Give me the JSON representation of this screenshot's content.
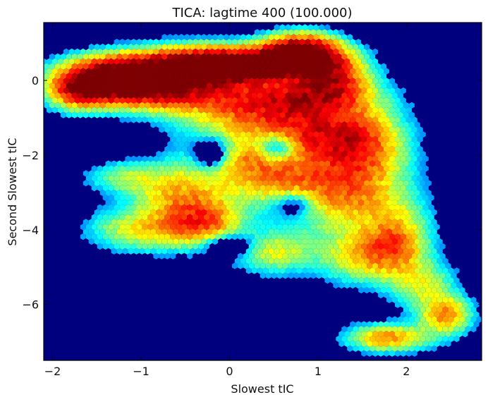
{
  "chart_data": {
    "type": "heatmap",
    "subtype": "hexbin",
    "title": "TICA: lagtime 400 (100.000)",
    "xlabel": "Slowest tIC",
    "ylabel": "Second Slowest tIC",
    "xlim": [
      -2.1,
      2.85
    ],
    "ylim": [
      -7.5,
      1.55
    ],
    "xticks": [
      -2,
      -1,
      0,
      1,
      2
    ],
    "xtick_labels": [
      "−2",
      "−1",
      "0",
      "1",
      "2"
    ],
    "yticks": [
      0,
      -2,
      -4,
      -6
    ],
    "ytick_labels": [
      "0",
      "−2",
      "−4",
      "−6"
    ],
    "colormap": "jet",
    "background_color": "#00007f",
    "grid": false,
    "density_peaks": [
      {
        "x": -1.2,
        "y": 0.1,
        "intensity": 1.0
      },
      {
        "x": 0.8,
        "y": 0.75,
        "intensity": 1.0
      },
      {
        "x": -0.25,
        "y": 0.45,
        "intensity": 0.85
      }
    ]
  }
}
